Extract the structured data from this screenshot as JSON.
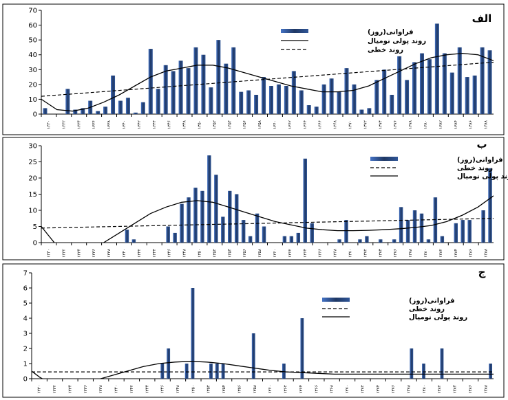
{
  "chart_data": [
    {
      "type": "bar",
      "panel_label": "الف",
      "legend": [
        "فراوانی(روز)",
        "روند پولی نومیال",
        "روند خطی"
      ],
      "legend_placement": "top-right",
      "ylim": [
        0,
        70
      ],
      "yticks": [
        0,
        10,
        20,
        30,
        40,
        50,
        60,
        70
      ],
      "x_tick_labels": [
        "۱۳۳۰",
        "۱۳۳۲",
        "۱۳۳۴",
        "۱۳۳۶",
        "۱۳۳۸",
        "۱۳۴۰",
        "۱۳۴۲",
        "۱۳۴۴",
        "۱۳۴۶",
        "۱۳۴۸",
        "۱۳۵۰",
        "۱۳۵۲",
        "۱۳۵۴",
        "۱۳۵۶",
        "۱۳۵۸",
        "۱۳۶۰",
        "۱۳۶۲",
        "۱۳۶۴",
        "۱۳۶۶",
        "۱۳۶۸",
        "۱۳۷۰",
        "۱۳۷۲",
        "۱۳۷۴",
        "۱۳۷۶",
        "۱۳۷۸",
        "۱۳۸۰",
        "۱۳۸۲",
        "۱۳۸۴",
        "۱۳۸۶",
        "۱۳۸۸"
      ],
      "x_first": 1330,
      "x_last": 1388,
      "values": [
        4,
        0,
        0,
        17,
        3,
        4,
        9,
        2,
        5,
        26,
        9,
        11,
        1,
        8,
        44,
        17,
        33,
        29,
        36,
        31,
        45,
        40,
        18,
        50,
        34,
        45,
        15,
        16,
        13,
        25,
        19,
        20,
        19,
        29,
        16,
        6,
        5,
        20,
        24,
        15,
        31,
        20,
        3,
        4,
        23,
        30,
        13,
        39,
        23,
        35,
        41,
        37,
        61,
        41,
        28,
        45,
        25,
        26,
        45,
        43
      ],
      "linear_trend": [
        12,
        35
      ],
      "poly_trend_points": [
        [
          1330,
          10
        ],
        [
          1332,
          3
        ],
        [
          1334,
          2
        ],
        [
          1336,
          4
        ],
        [
          1338,
          8
        ],
        [
          1340,
          13
        ],
        [
          1342,
          19
        ],
        [
          1344,
          25
        ],
        [
          1346,
          29
        ],
        [
          1348,
          31
        ],
        [
          1350,
          33
        ],
        [
          1352,
          33
        ],
        [
          1354,
          31
        ],
        [
          1356,
          28
        ],
        [
          1358,
          25
        ],
        [
          1360,
          22
        ],
        [
          1362,
          19
        ],
        [
          1364,
          17
        ],
        [
          1366,
          15
        ],
        [
          1368,
          15
        ],
        [
          1370,
          16
        ],
        [
          1372,
          19
        ],
        [
          1374,
          24
        ],
        [
          1376,
          29
        ],
        [
          1378,
          34
        ],
        [
          1380,
          38
        ],
        [
          1382,
          40
        ],
        [
          1384,
          41
        ],
        [
          1386,
          40
        ],
        [
          1388,
          36
        ]
      ],
      "series_colors": {
        "bar": "#1f3864",
        "bar_light": "#4472c4",
        "poly": "#000000",
        "linear": "#000000"
      }
    },
    {
      "type": "bar",
      "panel_label": "ب",
      "legend": [
        "فراوانی(روز)",
        "روند خطی",
        "روند پولی نومیال"
      ],
      "legend_placement": "top-right",
      "ylim": [
        0,
        30
      ],
      "yticks": [
        0,
        5,
        10,
        15,
        20,
        25,
        30
      ],
      "x_tick_labels": [
        "۱۳۳۰",
        "۱۳۳۲",
        "۱۳۳۴",
        "۱۳۳۶",
        "۱۳۳۸",
        "۱۳۴۰",
        "۱۳۴۲",
        "۱۳۴۴",
        "۱۳۴۶",
        "۱۳۴۸",
        "۱۳۵۰",
        "۱۳۵۲",
        "۱۳۵۴",
        "۱۳۵۶",
        "۱۳۵۸",
        "۱۳۶۰",
        "۱۳۶۲",
        "۱۳۶۴",
        "۱۳۶۶",
        "۱۳۶۸",
        "۱۳۷۰",
        "۱۳۷۲",
        "۱۳۷۴",
        "۱۳۷۶",
        "۱۳۷۸",
        "۱۳۸۰",
        "۱۳۸۲",
        "۱۳۸۴",
        "۱۳۸۶",
        "۱۳۸۸"
      ],
      "x_first": 1330,
      "x_last": 1388,
      "values": [
        0,
        0,
        0,
        0,
        0,
        0,
        0,
        0,
        0,
        0,
        0,
        0,
        4,
        1,
        0,
        0,
        0,
        0,
        5,
        3,
        12,
        14,
        17,
        16,
        27,
        21,
        8,
        16,
        15,
        7,
        2,
        9,
        5,
        0,
        0,
        2,
        2,
        3,
        26,
        6,
        0,
        0,
        0,
        1,
        7,
        0,
        1,
        2,
        0,
        1,
        0,
        1,
        11,
        7,
        10,
        9,
        1,
        14,
        2,
        0,
        6,
        7,
        7,
        0,
        10,
        23
      ],
      "linear_trend": [
        4.5,
        7.5
      ],
      "poly_trend_points": [
        [
          1330,
          5
        ],
        [
          1331,
          2
        ],
        [
          1332,
          -1
        ],
        [
          1334,
          -3
        ],
        [
          1336,
          -2
        ],
        [
          1338,
          0
        ],
        [
          1340,
          3
        ],
        [
          1342,
          6
        ],
        [
          1344,
          9
        ],
        [
          1346,
          11
        ],
        [
          1348,
          12.5
        ],
        [
          1350,
          13
        ],
        [
          1352,
          12.5
        ],
        [
          1354,
          11
        ],
        [
          1356,
          9.5
        ],
        [
          1358,
          8
        ],
        [
          1360,
          6.5
        ],
        [
          1362,
          5.5
        ],
        [
          1364,
          4.5
        ],
        [
          1366,
          4
        ],
        [
          1368,
          3.7
        ],
        [
          1370,
          3.7
        ],
        [
          1372,
          3.8
        ],
        [
          1374,
          4
        ],
        [
          1376,
          4.3
        ],
        [
          1378,
          4.7
        ],
        [
          1380,
          5.3
        ],
        [
          1382,
          6.5
        ],
        [
          1384,
          8.5
        ],
        [
          1386,
          11
        ],
        [
          1388,
          14.5
        ]
      ],
      "series_colors": {
        "bar": "#1f3864",
        "bar_light": "#4472c4",
        "poly": "#000000",
        "linear": "#000000"
      }
    },
    {
      "type": "bar",
      "panel_label": "ج",
      "legend": [
        "فراوانی(روز)",
        "روند خطی",
        "روند پولی نومیال"
      ],
      "legend_placement": "top-right",
      "ylim": [
        0,
        7
      ],
      "yticks": [
        0,
        1,
        2,
        3,
        4,
        5,
        6,
        7
      ],
      "x_tick_labels": [
        "۱۳۳۰",
        "۱۳۳۲",
        "۱۳۳۴",
        "۱۳۳۶",
        "۱۳۳۸",
        "۱۳۴۰",
        "۱۳۴۲",
        "۱۳۴۴",
        "۱۳۴۶",
        "۱۳۴۸",
        "۱۳۵۰",
        "۱۳۵۲",
        "۱۳۵۴",
        "۱۳۵۶",
        "۱۳۵۸",
        "۱۳۶۰",
        "۱۳۶۲",
        "۱۳۶۴",
        "۱۳۶۶",
        "۱۳۶۸",
        "۱۳۷۰",
        "۱۳۷۲",
        "۱۳۷۴",
        "۱۳۷۶",
        "۱۳۷۸",
        "۱۳۸۰",
        "۱۳۸۲",
        "۱۳۸۴",
        "۱۳۸۶",
        "۱۳۸۸"
      ],
      "x_first": 1330,
      "x_last": 1388,
      "values": [
        0,
        0,
        0,
        0,
        0,
        0,
        0,
        0,
        0,
        0,
        0,
        0,
        0,
        0,
        0,
        0,
        0,
        0,
        0,
        0,
        0,
        1,
        2,
        0,
        0,
        1,
        6,
        0,
        0,
        1,
        1,
        1,
        0,
        0,
        0,
        0,
        3,
        0,
        0,
        0,
        0,
        1,
        0,
        0,
        4,
        0,
        0,
        0,
        0,
        0,
        0,
        0,
        0,
        0,
        0,
        0,
        0,
        0,
        0,
        0,
        0,
        0,
        2,
        0,
        1,
        0,
        0,
        2,
        0,
        0,
        0,
        0,
        0,
        0,
        0,
        1
      ],
      "linear_trend": [
        0.45,
        0.45
      ],
      "poly_trend_points": [
        [
          1330,
          0.5
        ],
        [
          1331,
          0.1
        ],
        [
          1332,
          -0.2
        ],
        [
          1334,
          -0.4
        ],
        [
          1336,
          -0.3
        ],
        [
          1338,
          -0.1
        ],
        [
          1340,
          0.2
        ],
        [
          1342,
          0.5
        ],
        [
          1344,
          0.8
        ],
        [
          1346,
          1.0
        ],
        [
          1348,
          1.1
        ],
        [
          1350,
          1.15
        ],
        [
          1352,
          1.1
        ],
        [
          1354,
          1.0
        ],
        [
          1356,
          0.85
        ],
        [
          1358,
          0.7
        ],
        [
          1360,
          0.55
        ],
        [
          1362,
          0.45
        ],
        [
          1364,
          0.4
        ],
        [
          1366,
          0.35
        ],
        [
          1368,
          0.3
        ],
        [
          1370,
          0.3
        ],
        [
          1372,
          0.3
        ],
        [
          1374,
          0.3
        ],
        [
          1376,
          0.3
        ],
        [
          1378,
          0.3
        ],
        [
          1380,
          0.3
        ],
        [
          1382,
          0.3
        ],
        [
          1384,
          0.3
        ],
        [
          1386,
          0.3
        ],
        [
          1388,
          0.3
        ]
      ],
      "series_colors": {
        "bar": "#1f3864",
        "bar_light": "#4472c4",
        "poly": "#000000",
        "linear": "#000000"
      }
    }
  ]
}
